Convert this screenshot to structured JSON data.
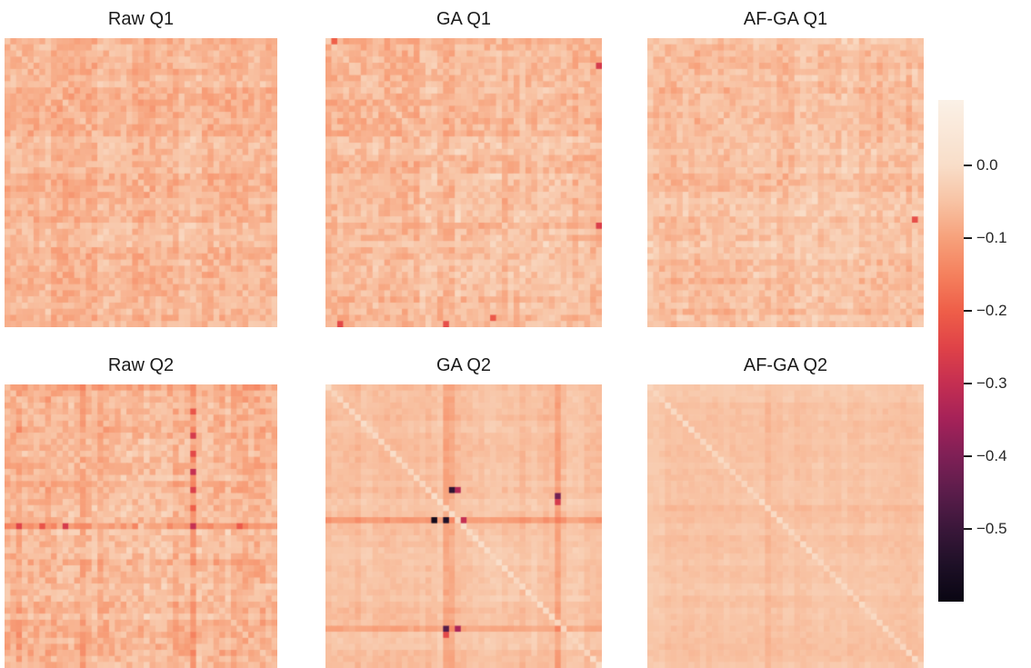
{
  "colorbar": {
    "vmax": 0.09,
    "vmin": -0.6,
    "ticks": [
      {
        "label": "0.0",
        "value": 0.0
      },
      {
        "label": "−0.1",
        "value": -0.1
      },
      {
        "label": "−0.2",
        "value": -0.2
      },
      {
        "label": "−0.3",
        "value": -0.3
      },
      {
        "label": "−0.4",
        "value": -0.4
      },
      {
        "label": "−0.5",
        "value": -0.5
      }
    ],
    "colormap_stops": [
      {
        "v": 0.09,
        "c": "#fbf1e7"
      },
      {
        "v": 0.0,
        "c": "#f9dec9"
      },
      {
        "v": -0.05,
        "c": "#f8c3a4"
      },
      {
        "v": -0.1,
        "c": "#f7a17b"
      },
      {
        "v": -0.15,
        "c": "#f5815e"
      },
      {
        "v": -0.2,
        "c": "#ef5f49"
      },
      {
        "v": -0.25,
        "c": "#e04348"
      },
      {
        "v": -0.3,
        "c": "#c52f52"
      },
      {
        "v": -0.35,
        "c": "#a52259"
      },
      {
        "v": -0.4,
        "c": "#7f2056"
      },
      {
        "v": -0.45,
        "c": "#5b1d4b"
      },
      {
        "v": -0.5,
        "c": "#3a173a"
      },
      {
        "v": -0.55,
        "c": "#1e1027"
      },
      {
        "v": -0.6,
        "c": "#0a0613"
      }
    ]
  },
  "chart_data": [
    {
      "type": "heatmap",
      "title": "Raw Q1",
      "grid_size": 47,
      "typical_value_range": [
        -0.13,
        0.0
      ],
      "notable_features": "mottled uniform correlation matrix, values mostly -0.02 to -0.12, faint lighter diagonal",
      "render": {
        "seed": 101,
        "base": -0.065,
        "band_amp": 0.028,
        "noise_amp": 0.03,
        "diag_offset": 0.02,
        "col_offsets": [],
        "row_offsets": [],
        "hotspots": []
      }
    },
    {
      "type": "heatmap",
      "title": "GA Q1",
      "grid_size": 47,
      "typical_value_range": [
        -0.27,
        0.0
      ],
      "notable_features": "banded matrix, red cells about -0.25 in last column and bottom rows",
      "render": {
        "seed": 202,
        "base": -0.06,
        "band_amp": 0.034,
        "noise_amp": 0.03,
        "diag_offset": 0.025,
        "col_offsets": [
          [
            46,
            -0.03
          ]
        ],
        "row_offsets": [
          [
            46,
            -0.02
          ]
        ],
        "hotspots": [
          {
            "r": 4,
            "c": 46,
            "v": -0.27
          },
          {
            "r": 30,
            "c": 46,
            "v": -0.26
          },
          {
            "r": 46,
            "c": 2,
            "v": -0.24
          },
          {
            "r": 46,
            "c": 20,
            "v": -0.23
          },
          {
            "r": 45,
            "c": 28,
            "v": -0.21
          },
          {
            "r": 0,
            "c": 1,
            "v": -0.2
          }
        ]
      }
    },
    {
      "type": "heatmap",
      "title": "AF-GA Q1",
      "grid_size": 47,
      "typical_value_range": [
        -0.23,
        0.0
      ],
      "notable_features": "banded matrix similar to GA Q1, one red cell near right edge around -0.23",
      "render": {
        "seed": 303,
        "base": -0.055,
        "band_amp": 0.03,
        "noise_amp": 0.026,
        "diag_offset": 0.02,
        "col_offsets": [],
        "row_offsets": [],
        "hotspots": [
          {
            "r": 29,
            "c": 45,
            "v": -0.23
          }
        ]
      }
    },
    {
      "type": "heatmap",
      "title": "Raw Q2",
      "grid_size": 47,
      "typical_value_range": [
        -0.3,
        0.0
      ],
      "notable_features": "mottled matrix with strong dark red cross: one column and one row of cells down to about -0.3",
      "render": {
        "seed": 404,
        "base": -0.065,
        "band_amp": 0.03,
        "noise_amp": 0.032,
        "diag_offset": 0.02,
        "col_offsets": [
          [
            32,
            -0.045
          ],
          [
            13,
            -0.02
          ],
          [
            2,
            -0.02
          ]
        ],
        "row_offsets": [
          [
            23,
            -0.05
          ],
          [
            0,
            -0.025
          ]
        ],
        "hotspots": [
          {
            "r": 4,
            "c": 32,
            "v": -0.22
          },
          {
            "r": 8,
            "c": 32,
            "v": -0.27
          },
          {
            "r": 11,
            "c": 32,
            "v": -0.24
          },
          {
            "r": 14,
            "c": 32,
            "v": -0.3
          },
          {
            "r": 17,
            "c": 32,
            "v": -0.26
          },
          {
            "r": 20,
            "c": 32,
            "v": -0.2
          },
          {
            "r": 23,
            "c": 2,
            "v": -0.25
          },
          {
            "r": 23,
            "c": 6,
            "v": -0.22
          },
          {
            "r": 23,
            "c": 10,
            "v": -0.27
          },
          {
            "r": 23,
            "c": 32,
            "v": -0.3
          },
          {
            "r": 23,
            "c": 40,
            "v": -0.21
          }
        ]
      }
    },
    {
      "type": "heatmap",
      "title": "GA Q2",
      "grid_size": 47,
      "typical_value_range": [
        -0.58,
        0.0
      ],
      "notable_features": "smooth matrix with light diagonal, dark vertical/horizontal bands, near-black cells down to about -0.58 and magenta cells about -0.35",
      "render": {
        "seed": 505,
        "base": -0.05,
        "band_amp": 0.02,
        "noise_amp": 0.012,
        "diag_offset": 0.042,
        "col_offsets": [
          [
            20,
            -0.05
          ],
          [
            21,
            -0.035
          ],
          [
            39,
            -0.045
          ],
          [
            5,
            -0.018
          ],
          [
            33,
            -0.015
          ]
        ],
        "row_offsets": [
          [
            22,
            -0.05
          ],
          [
            40,
            -0.035
          ],
          [
            5,
            -0.015
          ]
        ],
        "hotspots": [
          {
            "r": 17,
            "c": 21,
            "v": -0.52
          },
          {
            "r": 17,
            "c": 22,
            "v": -0.33
          },
          {
            "r": 22,
            "c": 18,
            "v": -0.58
          },
          {
            "r": 22,
            "c": 20,
            "v": -0.55
          },
          {
            "r": 22,
            "c": 23,
            "v": -0.3
          },
          {
            "r": 18,
            "c": 39,
            "v": -0.42
          },
          {
            "r": 19,
            "c": 39,
            "v": -0.27
          },
          {
            "r": 40,
            "c": 20,
            "v": -0.46
          },
          {
            "r": 40,
            "c": 22,
            "v": -0.34
          },
          {
            "r": 41,
            "c": 20,
            "v": -0.24
          }
        ]
      }
    },
    {
      "type": "heatmap",
      "title": "AF-GA Q2",
      "grid_size": 47,
      "typical_value_range": [
        -0.1,
        0.0
      ],
      "notable_features": "very smooth uniform light matrix with visible lighter diagonal and mild vertical bands",
      "render": {
        "seed": 606,
        "base": -0.046,
        "band_amp": 0.016,
        "noise_amp": 0.009,
        "diag_offset": 0.036,
        "col_offsets": [
          [
            20,
            -0.02
          ],
          [
            34,
            -0.012
          ]
        ],
        "row_offsets": [
          [
            20,
            -0.015
          ]
        ],
        "hotspots": []
      }
    }
  ]
}
